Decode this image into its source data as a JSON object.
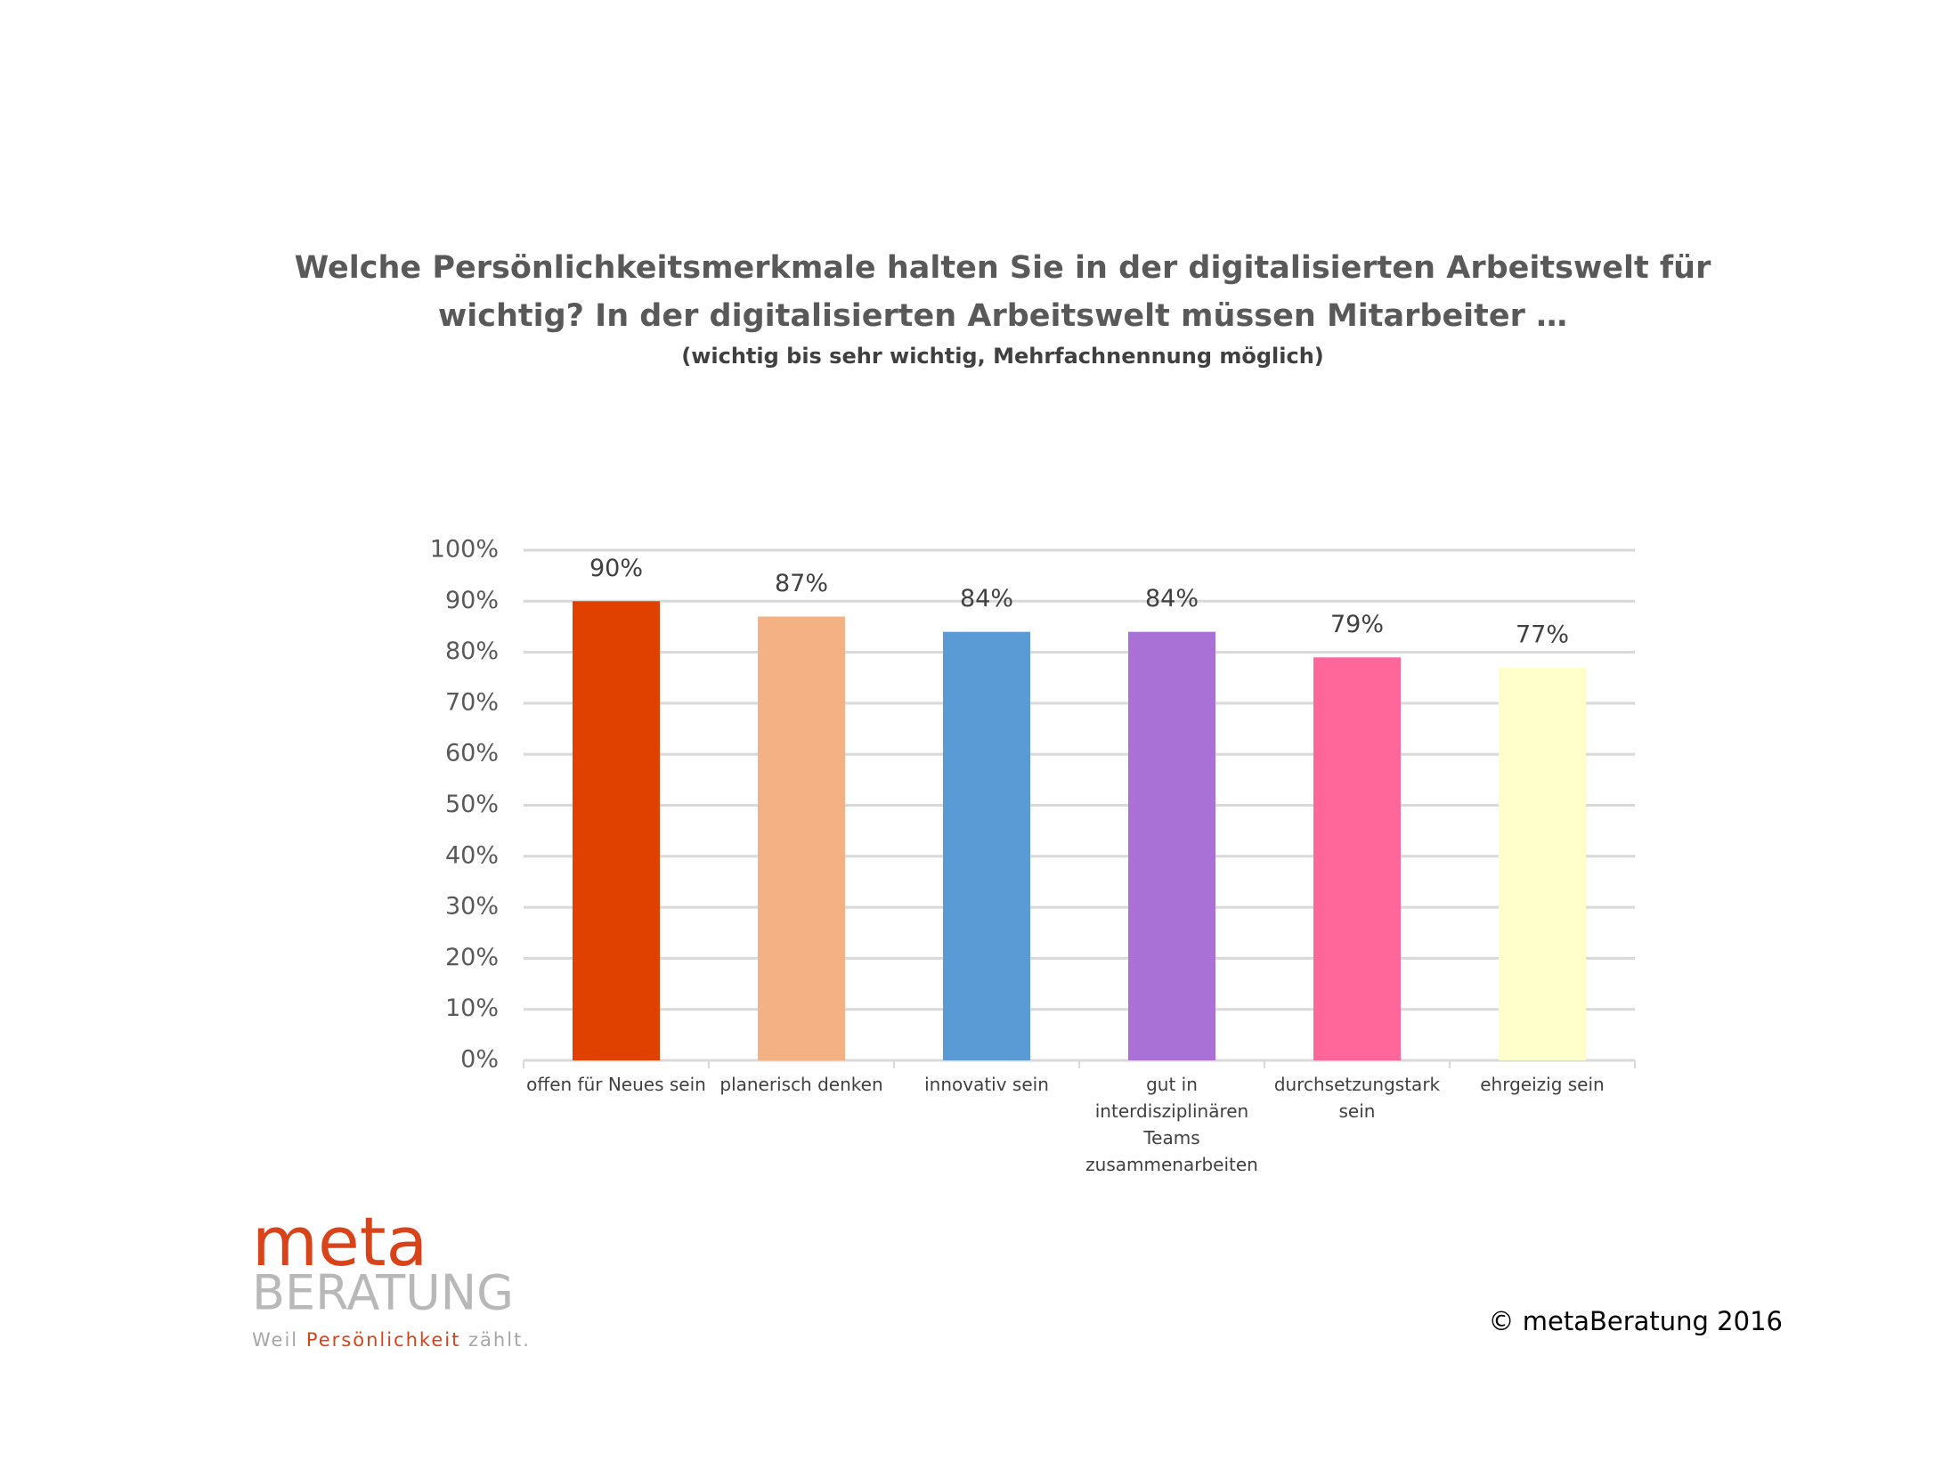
{
  "chart_data": {
    "type": "bar",
    "title_lines": [
      "Welche Persönlichkeitsmerkmale halten Sie in der digitalisierten Arbeitswelt für",
      "wichtig? In der digitalisierten Arbeitswelt müssen Mitarbeiter …"
    ],
    "subtitle": "(wichtig bis sehr wichtig, Mehrfachnennung möglich)",
    "categories": [
      "offen für Neues sein",
      "planerisch denken",
      "innovativ sein",
      "gut in interdisziplinären Teams zusammenarbeiten",
      "durchsetzungstark sein",
      "ehrgeizig sein"
    ],
    "values": [
      90,
      87,
      84,
      84,
      79,
      77
    ],
    "value_labels": [
      "90%",
      "87%",
      "84%",
      "84%",
      "79%",
      "77%"
    ],
    "colors": [
      "#e04000",
      "#f4b183",
      "#5b9bd5",
      "#a970d6",
      "#ff6699",
      "#ffffcc"
    ],
    "ylim": [
      0,
      100
    ],
    "yticks": [
      {
        "value": 0,
        "label": "0%"
      },
      {
        "value": 10,
        "label": "10%"
      },
      {
        "value": 20,
        "label": "20%"
      },
      {
        "value": 30,
        "label": "30%"
      },
      {
        "value": 40,
        "label": "40%"
      },
      {
        "value": 50,
        "label": "50%"
      },
      {
        "value": 60,
        "label": "60%"
      },
      {
        "value": 70,
        "label": "70%"
      },
      {
        "value": 80,
        "label": "80%"
      },
      {
        "value": 90,
        "label": "90%"
      },
      {
        "value": 100,
        "label": "100%"
      }
    ],
    "grid": true
  },
  "logo": {
    "word1": "meta",
    "word2": "BERATUNG",
    "tagline": [
      "Weil",
      "Persönlichkeit",
      "zählt."
    ]
  },
  "copyright": "© metaBeratung 2016"
}
